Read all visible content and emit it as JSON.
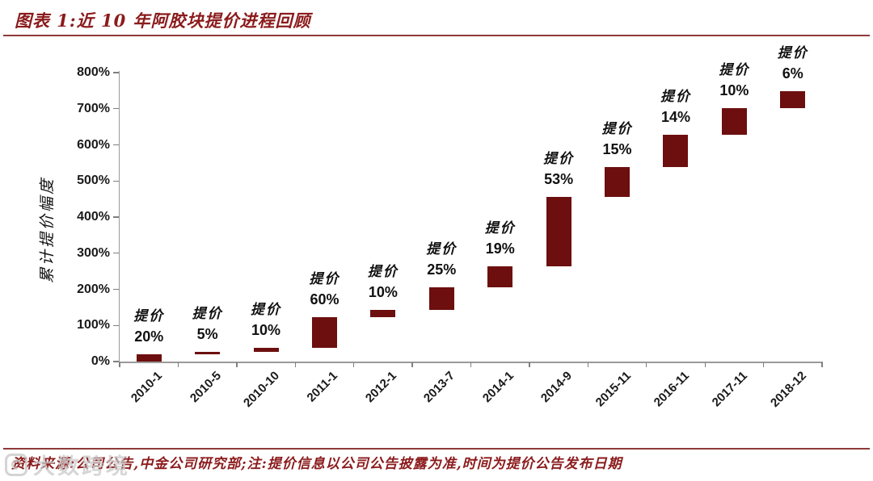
{
  "header": {
    "title": "图表 1:近 10 年阿胶块提价进程回顾"
  },
  "footer": {
    "text": "资料来源:公司公告,中金公司研究部;注:提价信息以公司公告披露为准,时间为提价公告发布日期",
    "watermark_text": "大数跨境"
  },
  "colors": {
    "accent_red": "#8b1b1c",
    "bar_maroon": "#6d0f0f",
    "axis_gray": "#9a9a9a"
  },
  "chart_data": {
    "type": "bar",
    "subtype": "floating_cumulative_waterfall",
    "title": "近 10 年阿胶块提价进程回顾",
    "xlabel": "",
    "ylabel": "累计提价幅度",
    "ylim": [
      0,
      800
    ],
    "ytick_step": 100,
    "yticks": [
      "0%",
      "100%",
      "200%",
      "300%",
      "400%",
      "500%",
      "600%",
      "700%",
      "800%"
    ],
    "grid": false,
    "legend_position": "none",
    "bar_color": "#6d0f0f",
    "bar_label_prefix": "提价",
    "categories": [
      "2010-1",
      "2010-5",
      "2010-10",
      "2011-1",
      "2012-1",
      "2013-7",
      "2014-1",
      "2014-9",
      "2015-11",
      "2016-11",
      "2017-11",
      "2018-12"
    ],
    "series": [
      {
        "name": "提价幅度",
        "increase_pct": [
          20,
          5,
          10,
          60,
          10,
          25,
          19,
          53,
          15,
          14,
          10,
          6
        ],
        "cumulative_start_pct": [
          0,
          20,
          26,
          38.6,
          121.8,
          143.9,
          204.9,
          262.9,
          455.2,
          538.4,
          627.8,
          700.6
        ],
        "cumulative_end_pct": [
          20,
          26,
          38.6,
          121.8,
          143.9,
          204.9,
          262.9,
          455.2,
          538.4,
          627.8,
          700.6,
          748.6
        ]
      }
    ]
  }
}
